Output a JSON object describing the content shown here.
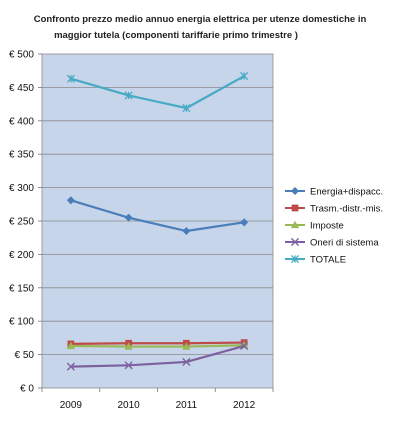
{
  "chart_data": {
    "type": "line",
    "title_lines": [
      "Confronto prezzo medio annuo energia elettrica per utenze domestiche in",
      "maggior tutela (componenti tariffarie primo trimestre )"
    ],
    "xlabel": "",
    "ylabel": "",
    "categories": [
      "2009",
      "2010",
      "2011",
      "2012"
    ],
    "ylim": [
      0,
      500
    ],
    "ytick_values": [
      0,
      50,
      100,
      150,
      200,
      250,
      300,
      350,
      400,
      450,
      500
    ],
    "ytick_labels": [
      "€ 0",
      "€ 50",
      "€ 100",
      "€ 150",
      "€ 200",
      "€ 250",
      "€ 300",
      "€ 350",
      "€ 400",
      "€ 450",
      "€ 500"
    ],
    "grid": true,
    "legend_position": "right",
    "plot_background": "#c7d5ea",
    "series": [
      {
        "name": "Energia+dispacc.",
        "values": [
          281,
          255,
          235,
          248
        ],
        "color": "#4a7ebb",
        "marker": "diamond"
      },
      {
        "name": "Trasm.-distr.-mis.",
        "values": [
          66,
          67,
          67,
          68
        ],
        "color": "#be4b48",
        "marker": "square"
      },
      {
        "name": "Imposte",
        "values": [
          63,
          62,
          62,
          64
        ],
        "color": "#98b954",
        "marker": "triangle"
      },
      {
        "name": "Oneri di sistema",
        "values": [
          32,
          34,
          39,
          63
        ],
        "color": "#7d60a0",
        "marker": "x"
      },
      {
        "name": "TOTALE",
        "values": [
          463,
          438,
          419,
          467
        ],
        "color": "#46aac5",
        "marker": "star"
      }
    ]
  }
}
